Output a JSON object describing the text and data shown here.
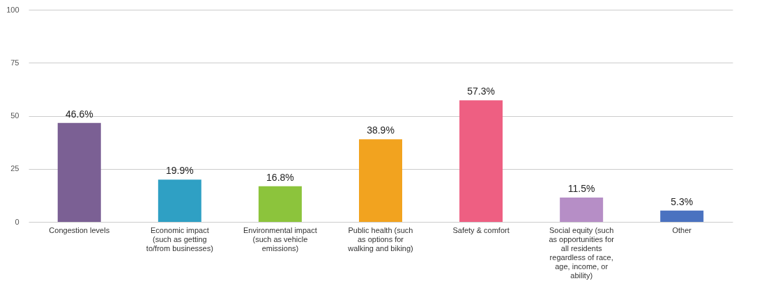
{
  "chart_data": {
    "type": "bar",
    "categories": [
      "Congestion levels",
      "Economic impact (such as getting to/from businesses)",
      "Environmental impact (such as vehicle emissions)",
      "Public health (such as options for walking and biking)",
      "Safety & comfort",
      "Social equity (such as opportunities for all residents regardless of race, age, income, or ability)",
      "Other"
    ],
    "values": [
      46.6,
      19.9,
      16.8,
      38.9,
      57.3,
      11.5,
      5.3
    ],
    "colors": [
      "#7b6094",
      "#2fa0c4",
      "#8cc43c",
      "#f2a31f",
      "#ee5f82",
      "#b68ec6",
      "#4a72c0"
    ],
    "value_labels": [
      "46.6%",
      "19.9%",
      "16.8%",
      "38.9%",
      "57.3%",
      "11.5%",
      "5.3%"
    ],
    "ylim": [
      0,
      100
    ],
    "yticks": [
      0,
      25,
      50,
      75,
      100
    ],
    "grid": "y"
  }
}
